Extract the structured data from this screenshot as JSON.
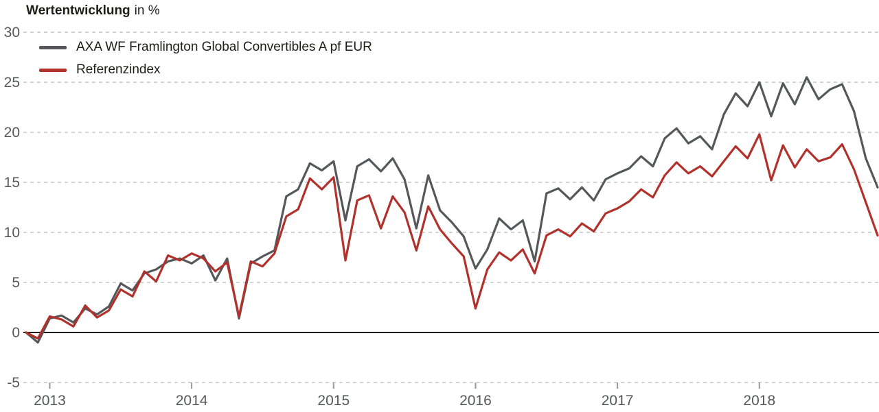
{
  "header": {
    "title_bold": "Wertentwicklung",
    "title_suffix": "in %"
  },
  "chart_data": {
    "type": "line",
    "title": "Wertentwicklung in %",
    "xlabel": "",
    "ylabel": "%",
    "ylim": [
      -5,
      30
    ],
    "yticks": [
      30,
      25,
      20,
      15,
      10,
      5,
      0,
      -5
    ],
    "grid": "dashed-horizontal, solid zero line",
    "legend_position": "top-left",
    "x_unit": "month",
    "x_start": "2012-11",
    "x_end": "2018-11",
    "year_ticks": [
      {
        "label": "2013",
        "index": 2
      },
      {
        "label": "2014",
        "index": 14
      },
      {
        "label": "2015",
        "index": 26
      },
      {
        "label": "2016",
        "index": 38
      },
      {
        "label": "2017",
        "index": 50
      },
      {
        "label": "2018",
        "index": 62
      }
    ],
    "series": [
      {
        "name": "AXA WF Framlington Global Convertibles A pf EUR",
        "color": "#56575b",
        "values": [
          0.0,
          -1.0,
          1.4,
          1.7,
          1.0,
          2.4,
          1.8,
          2.6,
          4.9,
          4.2,
          5.9,
          6.3,
          7.1,
          7.4,
          6.9,
          7.7,
          5.2,
          7.4,
          1.4,
          6.9,
          7.6,
          8.2,
          13.6,
          14.3,
          16.9,
          16.2,
          17.1,
          11.2,
          16.6,
          17.3,
          16.1,
          17.4,
          15.3,
          10.4,
          15.7,
          12.2,
          11.0,
          9.6,
          6.4,
          8.3,
          11.4,
          10.3,
          11.2,
          7.1,
          13.9,
          14.4,
          13.3,
          14.5,
          13.2,
          15.3,
          15.9,
          16.4,
          17.6,
          16.6,
          19.4,
          20.4,
          18.9,
          19.6,
          18.3,
          21.8,
          23.9,
          22.6,
          25.0,
          21.6,
          24.9,
          22.8,
          25.5,
          23.3,
          24.3,
          24.8,
          22.1,
          17.4,
          14.5
        ]
      },
      {
        "name": "Referenzindex",
        "color": "#b1312c",
        "values": [
          0.0,
          -0.6,
          1.6,
          1.3,
          0.6,
          2.7,
          1.5,
          2.2,
          4.3,
          3.6,
          6.1,
          5.1,
          7.7,
          7.2,
          7.9,
          7.4,
          6.1,
          7.0,
          1.6,
          7.1,
          6.6,
          7.9,
          11.6,
          12.3,
          15.4,
          14.3,
          15.5,
          7.2,
          13.2,
          13.7,
          10.4,
          13.6,
          12.0,
          8.2,
          12.6,
          10.3,
          8.9,
          7.6,
          2.4,
          6.3,
          8.0,
          7.2,
          8.3,
          5.9,
          9.7,
          10.3,
          9.6,
          10.9,
          10.1,
          11.9,
          12.4,
          13.1,
          14.3,
          13.5,
          15.7,
          17.0,
          15.9,
          16.6,
          15.6,
          17.1,
          18.6,
          17.4,
          19.8,
          15.2,
          18.7,
          16.5,
          18.3,
          17.1,
          17.5,
          18.8,
          16.3,
          13.0,
          9.7
        ]
      }
    ]
  }
}
